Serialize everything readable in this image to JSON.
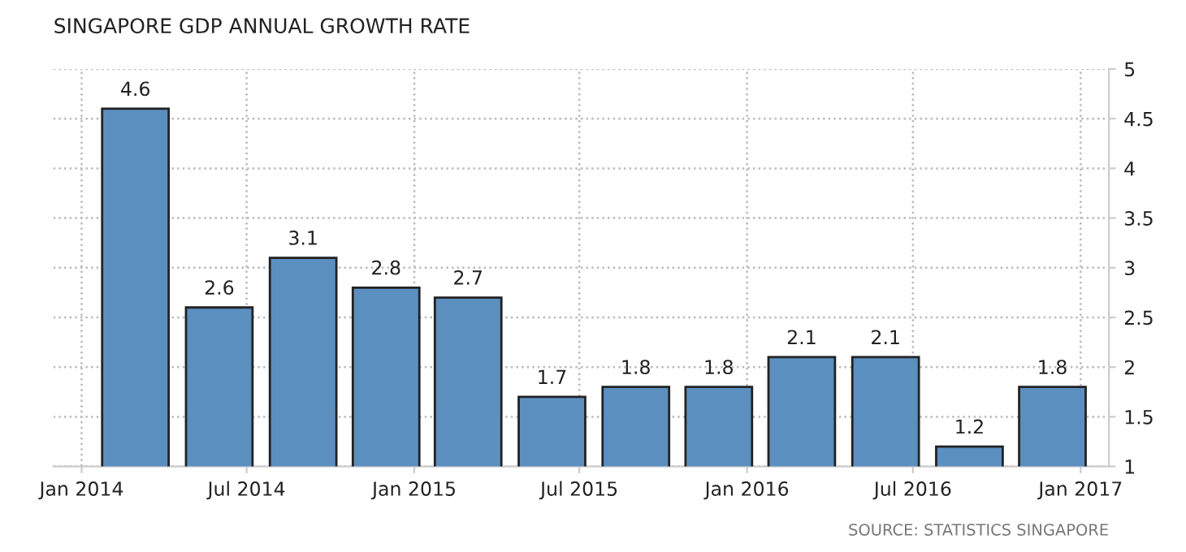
{
  "chart_data": {
    "type": "bar",
    "title": "SINGAPORE GDP ANNUAL GROWTH RATE",
    "x": [
      "2014-03-01",
      "2014-06-01",
      "2014-09-01",
      "2014-12-01",
      "2015-03-01",
      "2015-06-01",
      "2015-09-01",
      "2015-12-01",
      "2016-03-01",
      "2016-06-01",
      "2016-09-01",
      "2016-12-01"
    ],
    "values": [
      4.6,
      2.6,
      3.1,
      2.8,
      2.7,
      1.7,
      1.8,
      1.8,
      2.1,
      2.1,
      1.2,
      1.8
    ],
    "color": "#5b8fc0",
    "data_labels": true,
    "xlim": [
      "2013-12-01",
      "2017-02-01"
    ],
    "xticks": [
      {
        "value": "2014-01-01",
        "label": "Jan 2014"
      },
      {
        "value": "2014-07-01",
        "label": "Jul 2014"
      },
      {
        "value": "2015-01-01",
        "label": "Jan 2015"
      },
      {
        "value": "2015-07-01",
        "label": "Jul 2015"
      },
      {
        "value": "2016-01-01",
        "label": "Jan 2016"
      },
      {
        "value": "2016-07-01",
        "label": "Jul 2016"
      },
      {
        "value": "2017-01-01",
        "label": "Jan 2017"
      }
    ],
    "ylim": [
      1,
      5
    ],
    "yticks": [
      1,
      1.5,
      2,
      2.5,
      3,
      3.5,
      4,
      4.5,
      5
    ],
    "grid": true,
    "annotations": [
      "SOURCE: STATISTICS SINGAPORE"
    ]
  }
}
